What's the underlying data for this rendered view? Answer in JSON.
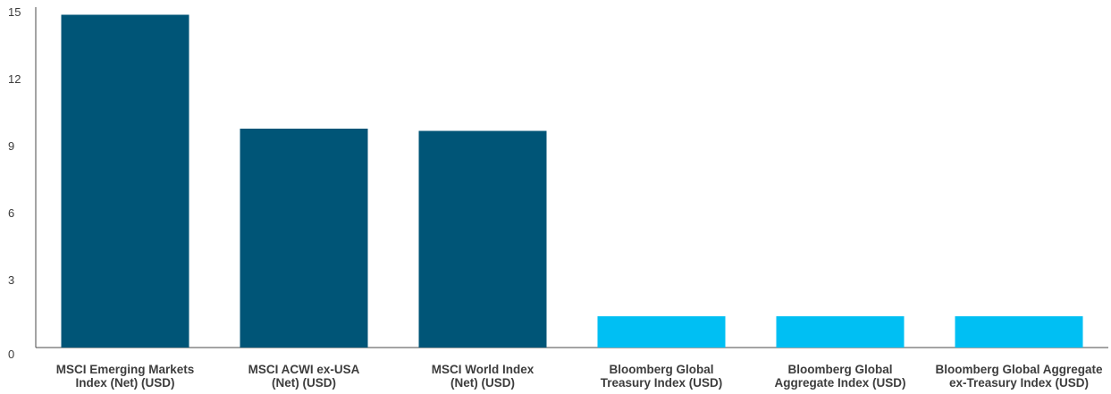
{
  "chart_data": {
    "type": "bar",
    "title": "",
    "xlabel": "",
    "ylabel": "",
    "ylim": [
      0,
      15
    ],
    "yticks": [
      0,
      3,
      6,
      9,
      12,
      15
    ],
    "grid": false,
    "categories": [
      [
        "MSCI Emerging Markets",
        "Index (Net) (USD)"
      ],
      [
        "MSCI ACWI ex-USA",
        "(Net) (USD)"
      ],
      [
        "MSCI World Index",
        "(Net) (USD)"
      ],
      [
        "Bloomberg Global",
        "Treasury Index (USD)"
      ],
      [
        "Bloomberg Global",
        "Aggregate Index (USD)"
      ],
      [
        "Bloomberg Global Aggregate",
        "ex-Treasury Index (USD)"
      ]
    ],
    "values": [
      14.9,
      9.8,
      9.7,
      1.4,
      1.4,
      1.4
    ],
    "colors": [
      "#005577",
      "#005577",
      "#005577",
      "#00bff3",
      "#00bff3",
      "#00bff3"
    ]
  }
}
